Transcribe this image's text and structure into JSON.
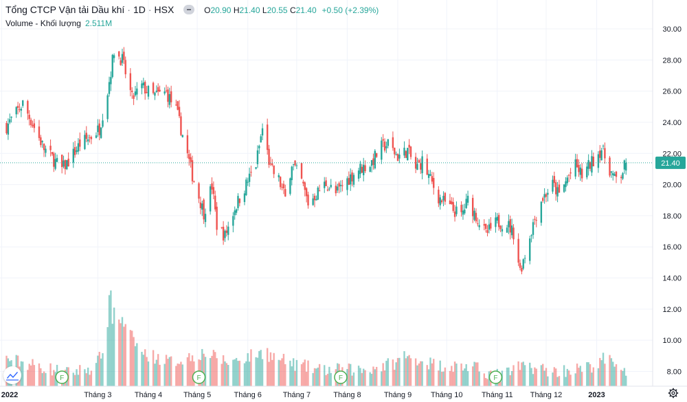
{
  "header": {
    "title": "Tổng CTCP Vận tải Dầu khí",
    "interval": "1D",
    "exchange": "HSX",
    "ohlc": {
      "o_label": "O",
      "o": "20.90",
      "h_label": "H",
      "h": "21.40",
      "l_label": "L",
      "l": "20.55",
      "c_label": "C",
      "c": "21.40"
    },
    "change": "+0.50 (+2.39%)",
    "volume_label": "Volume - Khối lượng",
    "volume_value": "2.511M"
  },
  "colors": {
    "up": "#26a69a",
    "down": "#ef5350",
    "grid": "#f0f3fa",
    "axis_text": "#131722"
  },
  "icons": [
    "eye-icon",
    "tradingview-logo-icon",
    "settings-icon",
    "dividend-flag-icon"
  ],
  "chart_data": {
    "type": "candlestick",
    "ylim": [
      7,
      31
    ],
    "y_ticks": [
      "8.00",
      "10.00",
      "12.00",
      "14.00",
      "16.00",
      "18.00",
      "20.00",
      "22.00",
      "24.00",
      "26.00",
      "28.00",
      "30.00"
    ],
    "x_labels": [
      {
        "label": "2022",
        "date": "2022-01-01"
      },
      {
        "label": "Tháng 3",
        "date": "2022-03-01"
      },
      {
        "label": "Tháng 4",
        "date": "2022-04-01"
      },
      {
        "label": "Tháng 5",
        "date": "2022-05-01"
      },
      {
        "label": "Tháng 6",
        "date": "2022-06-01"
      },
      {
        "label": "Tháng 7",
        "date": "2022-07-01"
      },
      {
        "label": "Tháng 8",
        "date": "2022-08-01"
      },
      {
        "label": "Tháng 9",
        "date": "2022-09-01"
      },
      {
        "label": "Tháng 10",
        "date": "2022-10-01"
      },
      {
        "label": "Tháng 11",
        "date": "2022-11-01"
      },
      {
        "label": "Tháng 12",
        "date": "2022-12-01"
      },
      {
        "label": "2023",
        "date": "2023-01-01"
      }
    ],
    "last_price": 21.4,
    "last_price_label": "21.40",
    "grid": true,
    "price_path": [
      [
        "2022-01-03",
        23.6
      ],
      [
        "2022-01-10",
        24.6
      ],
      [
        "2022-01-14",
        25.2
      ],
      [
        "2022-01-20",
        23.9
      ],
      [
        "2022-01-27",
        22.3
      ],
      [
        "2022-02-07",
        21.0
      ],
      [
        "2022-02-11",
        21.5
      ],
      [
        "2022-02-18",
        22.6
      ],
      [
        "2022-02-25",
        23.1
      ],
      [
        "2022-03-02",
        23.6
      ],
      [
        "2022-03-07",
        26.0
      ],
      [
        "2022-03-11",
        28.6
      ],
      [
        "2022-03-16",
        28.0
      ],
      [
        "2022-03-22",
        25.5
      ],
      [
        "2022-03-28",
        26.3
      ],
      [
        "2022-04-04",
        25.7
      ],
      [
        "2022-04-12",
        25.9
      ],
      [
        "2022-04-18",
        24.8
      ],
      [
        "2022-04-22",
        23.2
      ],
      [
        "2022-04-28",
        20.6
      ],
      [
        "2022-05-05",
        18.2
      ],
      [
        "2022-05-10",
        19.9
      ],
      [
        "2022-05-13",
        17.4
      ],
      [
        "2022-05-18",
        16.7
      ],
      [
        "2022-05-24",
        18.5
      ],
      [
        "2022-05-30",
        19.8
      ],
      [
        "2022-06-06",
        21.3
      ],
      [
        "2022-06-10",
        23.6
      ],
      [
        "2022-06-15",
        21.0
      ],
      [
        "2022-06-20",
        20.3
      ],
      [
        "2022-06-24",
        19.1
      ],
      [
        "2022-06-28",
        21.4
      ],
      [
        "2022-07-04",
        20.2
      ],
      [
        "2022-07-08",
        18.8
      ],
      [
        "2022-07-13",
        19.4
      ],
      [
        "2022-07-19",
        20.1
      ],
      [
        "2022-07-25",
        19.4
      ],
      [
        "2022-08-01",
        20.3
      ],
      [
        "2022-08-08",
        21.0
      ],
      [
        "2022-08-15",
        21.3
      ],
      [
        "2022-08-22",
        22.4
      ],
      [
        "2022-08-26",
        22.6
      ],
      [
        "2022-09-01",
        21.8
      ],
      [
        "2022-09-07",
        22.2
      ],
      [
        "2022-09-12",
        21.0
      ],
      [
        "2022-09-16",
        21.5
      ],
      [
        "2022-09-21",
        20.3
      ],
      [
        "2022-09-26",
        19.2
      ],
      [
        "2022-10-03",
        18.5
      ],
      [
        "2022-10-10",
        18.0
      ],
      [
        "2022-10-14",
        19.0
      ],
      [
        "2022-10-19",
        18.0
      ],
      [
        "2022-10-25",
        16.8
      ],
      [
        "2022-11-01",
        17.6
      ],
      [
        "2022-11-07",
        17.5
      ],
      [
        "2022-11-11",
        16.9
      ],
      [
        "2022-11-15",
        14.5
      ],
      [
        "2022-11-18",
        15.5
      ],
      [
        "2022-11-23",
        17.5
      ],
      [
        "2022-11-28",
        19.0
      ],
      [
        "2022-12-05",
        20.0
      ],
      [
        "2022-12-09",
        19.3
      ],
      [
        "2022-12-14",
        20.4
      ],
      [
        "2022-12-19",
        21.2
      ],
      [
        "2022-12-23",
        20.6
      ],
      [
        "2022-12-28",
        21.3
      ],
      [
        "2023-01-04",
        22.3
      ],
      [
        "2023-01-09",
        21.0
      ],
      [
        "2023-01-12",
        20.3
      ],
      [
        "2023-01-16",
        20.6
      ],
      [
        "2023-01-19",
        21.4
      ]
    ],
    "volume_levels": [
      [
        "2022-01-05",
        8.8
      ],
      [
        "2022-02-10",
        7.9
      ],
      [
        "2022-02-28",
        8.3
      ],
      [
        "2022-03-08",
        10.7
      ],
      [
        "2022-03-14",
        11.5
      ],
      [
        "2022-03-28",
        9.2
      ],
      [
        "2022-04-15",
        8.6
      ],
      [
        "2022-05-05",
        9.2
      ],
      [
        "2022-05-20",
        8.6
      ],
      [
        "2022-06-10",
        9.2
      ],
      [
        "2022-06-28",
        8.5
      ],
      [
        "2022-07-15",
        8.1
      ],
      [
        "2022-08-10",
        8.1
      ],
      [
        "2022-08-25",
        8.4
      ],
      [
        "2022-09-10",
        8.9
      ],
      [
        "2022-09-25",
        8.4
      ],
      [
        "2022-10-15",
        8.3
      ],
      [
        "2022-11-03",
        7.7
      ],
      [
        "2022-11-18",
        8.4
      ],
      [
        "2022-12-05",
        8.0
      ],
      [
        "2022-12-25",
        8.2
      ],
      [
        "2023-01-10",
        8.7
      ],
      [
        "2023-01-19",
        8.1
      ]
    ],
    "volume_spikes": [
      [
        "2022-03-09",
        13.2
      ],
      [
        "2022-03-11",
        12.1
      ],
      [
        "2022-03-08",
        12.9
      ],
      [
        "2022-06-13",
        9.5
      ],
      [
        "2022-09-05",
        9.3
      ],
      [
        "2023-01-05",
        9.2
      ]
    ],
    "dividend_markers": [
      "2022-02-07",
      "2022-05-02",
      "2022-07-28",
      "2022-10-31"
    ],
    "dividend_marker_label": "F"
  }
}
